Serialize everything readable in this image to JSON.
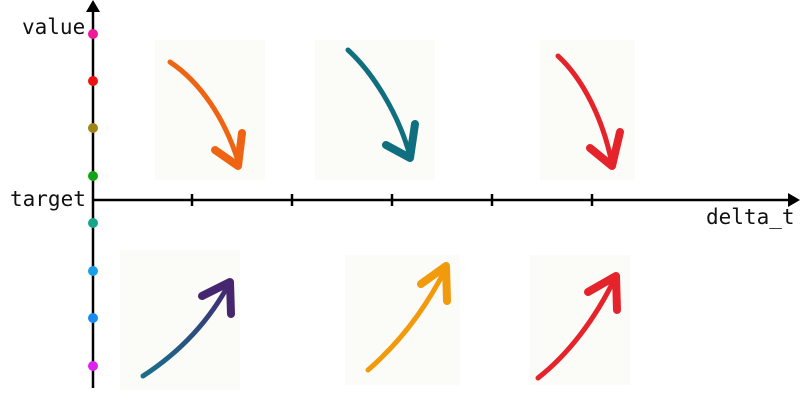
{
  "axes": {
    "y_label": "value",
    "x_label": "delta_t",
    "target_label": "target"
  },
  "y_axis_dots": [
    {
      "color": "#f0199a"
    },
    {
      "color": "#ee1111"
    },
    {
      "color": "#a08418"
    },
    {
      "color": "#14a314"
    },
    {
      "color": "#17a589"
    },
    {
      "color": "#1a9ee8"
    },
    {
      "color": "#1a8cf0"
    },
    {
      "color": "#dd22ee"
    }
  ],
  "x_ticks_count": 5,
  "arrows": [
    {
      "name": "arrow-orange-down",
      "color": "#ef6413",
      "direction": "down"
    },
    {
      "name": "arrow-teal-down",
      "color": "#0f6f7f",
      "direction": "down"
    },
    {
      "name": "arrow-red-down",
      "color": "#e5232b",
      "direction": "down"
    },
    {
      "name": "arrow-purple-up",
      "color": "#46266f",
      "tail_color": "#1b6f8a",
      "direction": "up"
    },
    {
      "name": "arrow-amber-up",
      "color": "#f19a0c",
      "direction": "up"
    },
    {
      "name": "arrow-red-up",
      "color": "#e5232b",
      "direction": "up"
    }
  ]
}
